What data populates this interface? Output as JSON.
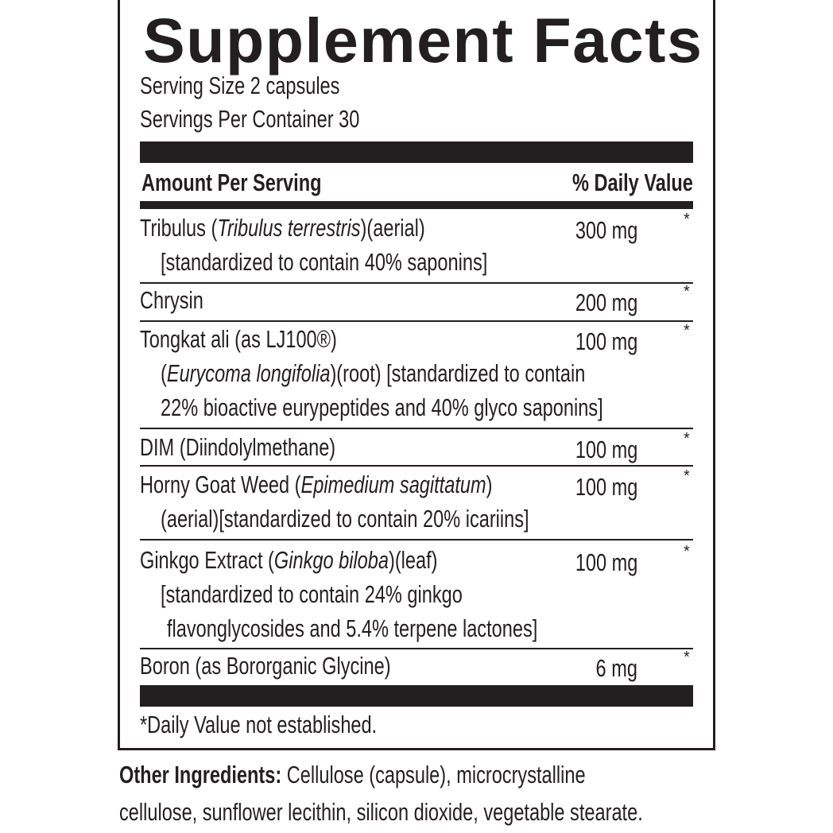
{
  "title": "Supplement Facts",
  "serving_size": "Serving Size 2 capsules",
  "servings_per_container": "Servings Per Container 30",
  "header": {
    "amount_per_serving": "Amount Per Serving",
    "daily_value": "% Daily Value"
  },
  "rows": [
    {
      "lines": [
        [
          {
            "t": "Tribulus ("
          },
          {
            "t": "Tribulus terrestris",
            "i": true
          },
          {
            "t": ")(aerial)"
          }
        ],
        [
          {
            "t": "[standardized to contain 40% saponins]"
          }
        ]
      ],
      "amount": "300 mg",
      "dv": "*"
    },
    {
      "lines": [
        [
          {
            "t": "Chrysin"
          }
        ]
      ],
      "amount": "200 mg",
      "dv": "*"
    },
    {
      "lines": [
        [
          {
            "t": "Tongkat ali (as LJ100®)"
          }
        ],
        [
          {
            "t": "("
          },
          {
            "t": "Eurycoma longifolia",
            "i": true
          },
          {
            "t": ")(root) [standardized to contain"
          }
        ],
        [
          {
            "t": "22% bioactive eurypeptides and 40% glyco saponins]"
          }
        ]
      ],
      "amount": "100 mg",
      "dv": "*"
    },
    {
      "lines": [
        [
          {
            "t": "DIM (Diindolylmethane)"
          }
        ]
      ],
      "amount": "100 mg",
      "dv": "*"
    },
    {
      "lines": [
        [
          {
            "t": "Horny Goat Weed ("
          },
          {
            "t": "Epimedium sagittatum",
            "i": true
          },
          {
            "t": ")"
          }
        ],
        [
          {
            "t": "(aerial)[standardized to contain 20% icariins]"
          }
        ]
      ],
      "amount": "100 mg",
      "dv": "*"
    },
    {
      "lines": [
        [
          {
            "t": "Ginkgo Extract  ("
          },
          {
            "t": "Ginkgo biloba",
            "i": true
          },
          {
            "t": ")(leaf)"
          }
        ],
        [
          {
            "t": "[standardized to contain 24% ginkgo"
          }
        ],
        [
          {
            "t": " flavonglycosides and 5.4% terpene lactones]"
          }
        ]
      ],
      "amount": "100 mg",
      "dv": "*"
    },
    {
      "lines": [
        [
          {
            "t": "Boron (as Bororganic Glycine)"
          }
        ]
      ],
      "amount": "6 mg",
      "dv": "*"
    }
  ],
  "footnote": "*Daily Value not established.",
  "other_ingredients": {
    "label": "Other Ingredients:",
    "line1": "Cellulose (capsule), microcrystalline",
    "line2": "cellulose, sunflower lecithin, silicon dioxide, vegetable stearate."
  }
}
